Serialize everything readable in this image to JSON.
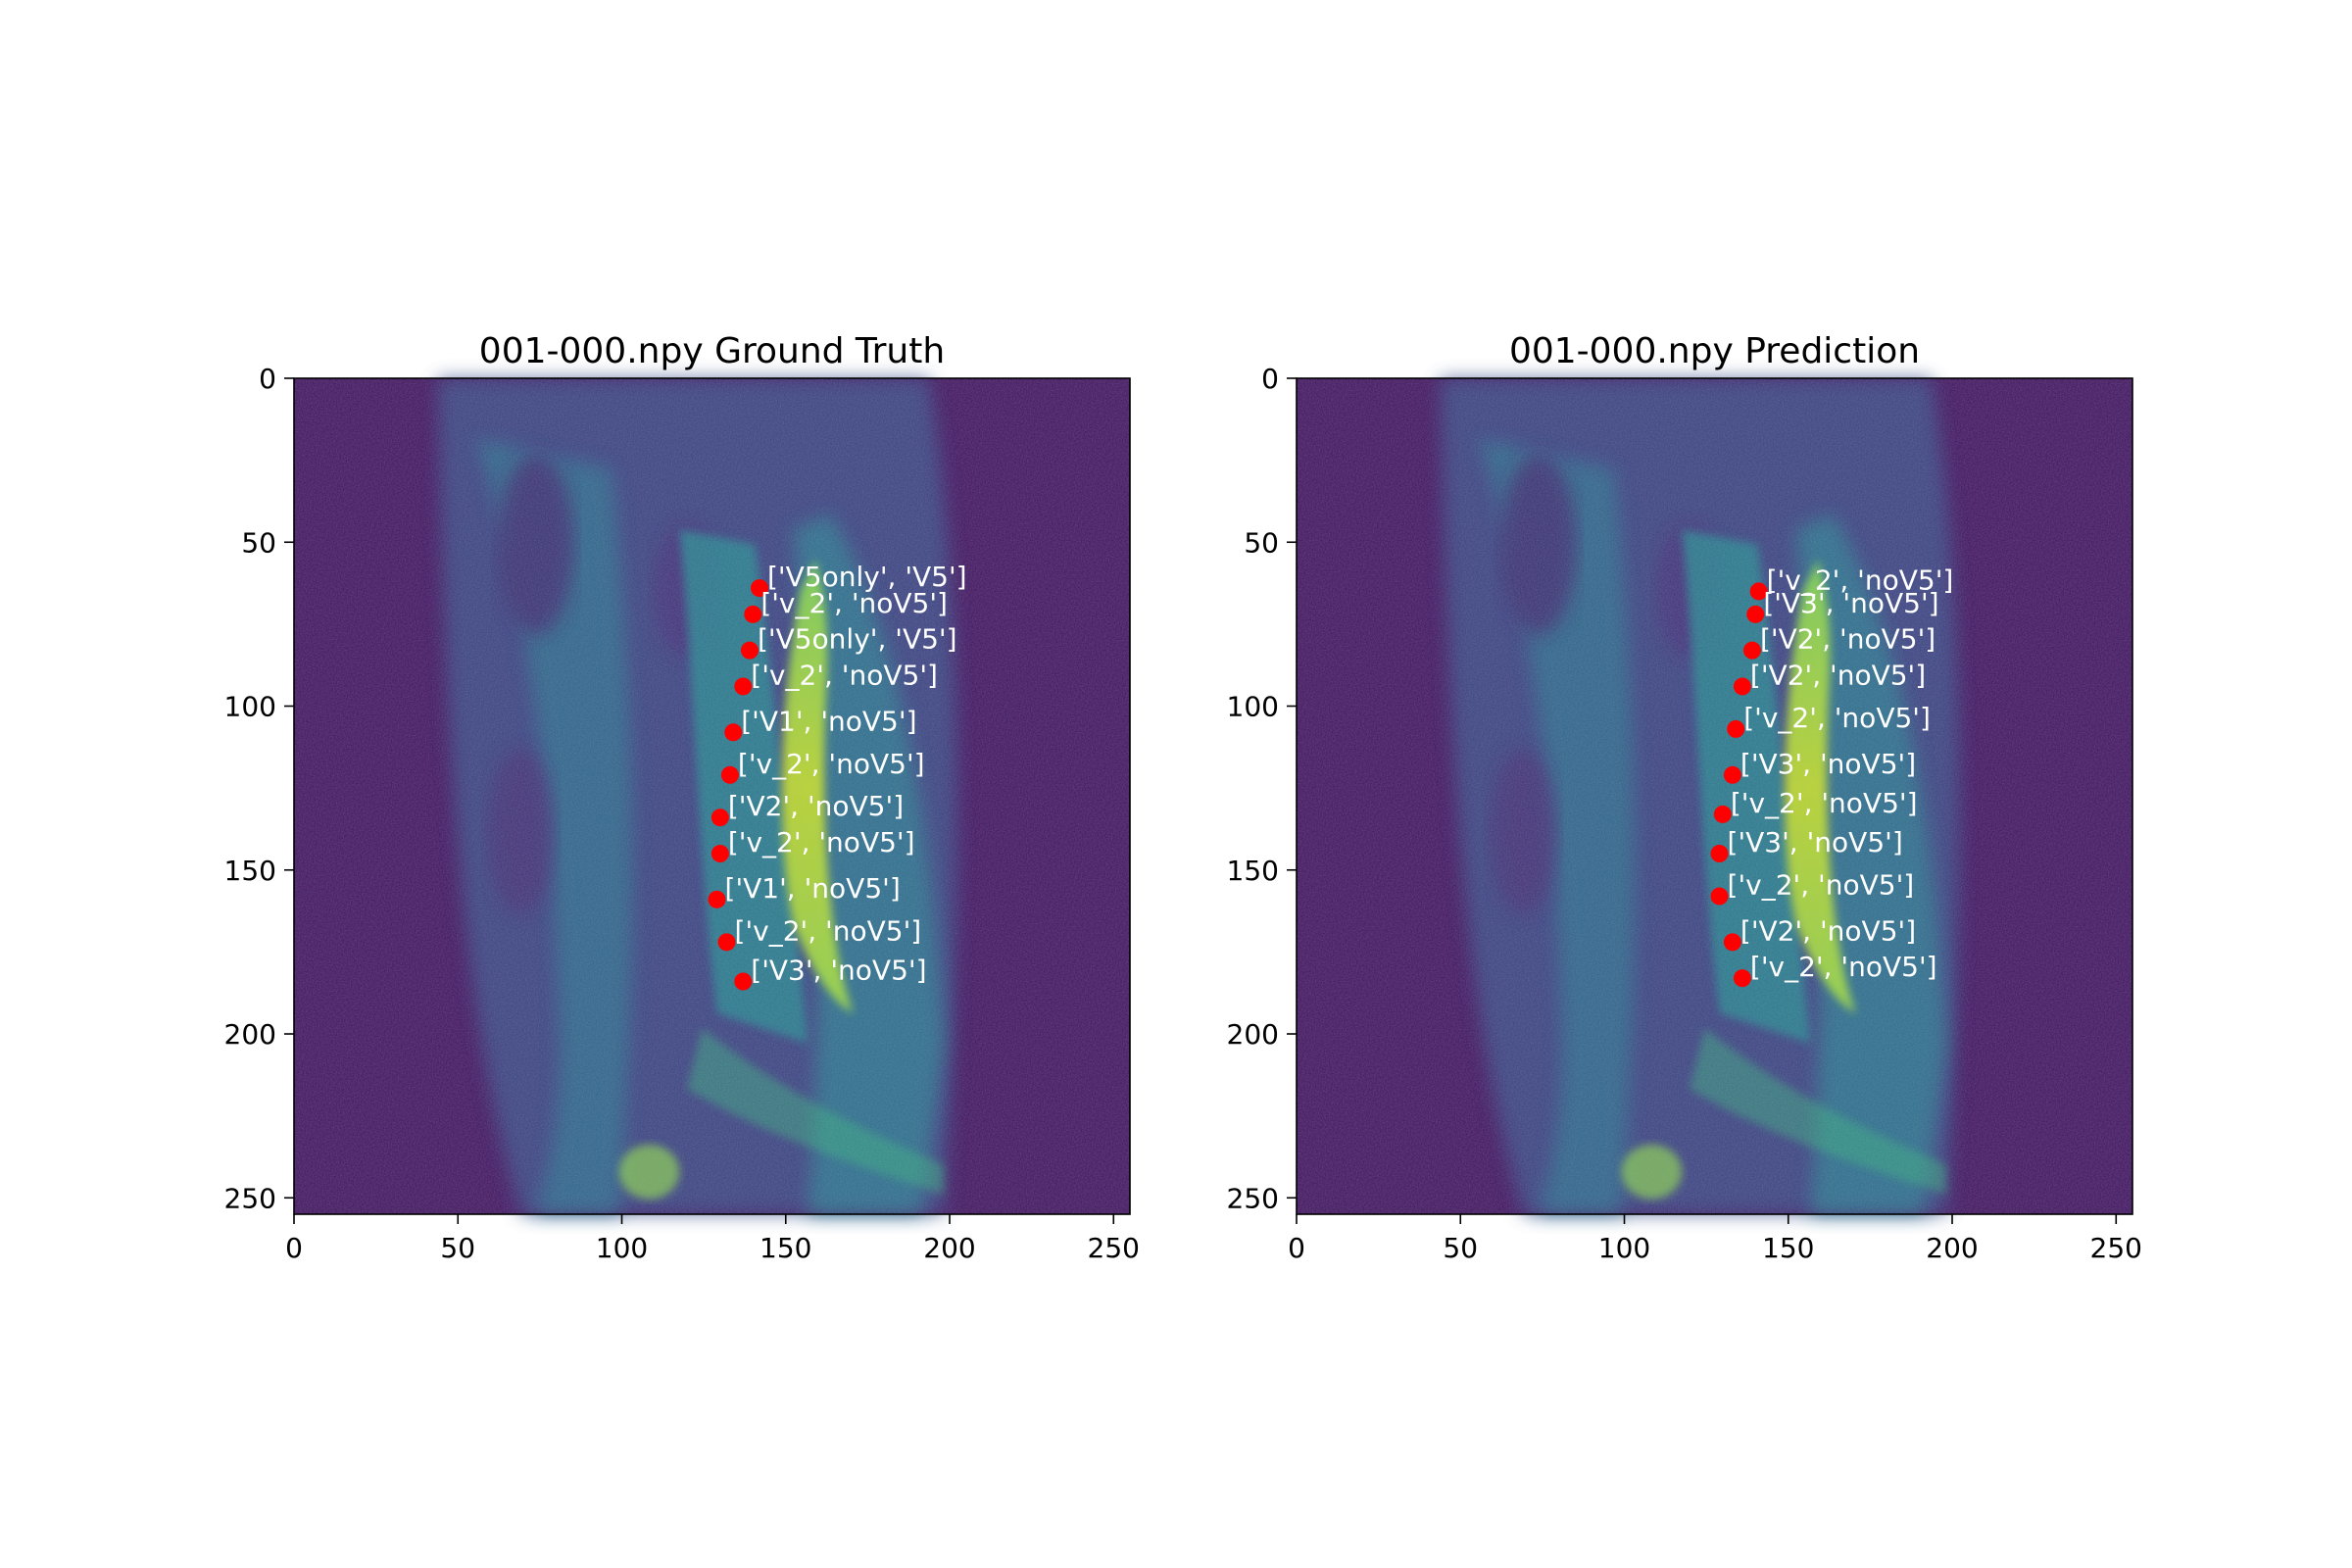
{
  "chart_data": [
    {
      "type": "scatter",
      "title": "001-000.npy Ground Truth",
      "xlabel": "",
      "ylabel": "",
      "xlim": [
        0,
        255
      ],
      "ylim": [
        255,
        0
      ],
      "xticks": [
        0,
        50,
        100,
        150,
        200,
        250
      ],
      "yticks": [
        0,
        50,
        100,
        150,
        200,
        250
      ],
      "grid": false,
      "background": "sagittal spine MRI slice (viridis colormap)",
      "marker_color": "#ff0000",
      "label_color": "#ffffff",
      "points": [
        {
          "x": 142,
          "y": 64,
          "label": "['V5only', 'V5']"
        },
        {
          "x": 140,
          "y": 72,
          "label": "['v_2', 'noV5']"
        },
        {
          "x": 139,
          "y": 83,
          "label": "['V5only', 'V5']"
        },
        {
          "x": 137,
          "y": 94,
          "label": "['v_2', 'noV5']"
        },
        {
          "x": 134,
          "y": 108,
          "label": "['V1', 'noV5']"
        },
        {
          "x": 133,
          "y": 121,
          "label": "['v_2', 'noV5']"
        },
        {
          "x": 130,
          "y": 134,
          "label": "['V2', 'noV5']"
        },
        {
          "x": 130,
          "y": 145,
          "label": "['v_2', 'noV5']"
        },
        {
          "x": 129,
          "y": 159,
          "label": "['V1', 'noV5']"
        },
        {
          "x": 132,
          "y": 172,
          "label": "['v_2', 'noV5']"
        },
        {
          "x": 137,
          "y": 184,
          "label": "['V3', 'noV5']"
        }
      ]
    },
    {
      "type": "scatter",
      "title": "001-000.npy Prediction",
      "xlabel": "",
      "ylabel": "",
      "xlim": [
        0,
        255
      ],
      "ylim": [
        255,
        0
      ],
      "xticks": [
        0,
        50,
        100,
        150,
        200,
        250
      ],
      "yticks": [
        0,
        50,
        100,
        150,
        200,
        250
      ],
      "grid": false,
      "background": "sagittal spine MRI slice (viridis colormap)",
      "marker_color": "#ff0000",
      "label_color": "#ffffff",
      "points": [
        {
          "x": 141,
          "y": 65,
          "label": "['v_2', 'noV5']"
        },
        {
          "x": 140,
          "y": 72,
          "label": "['V3', 'noV5']"
        },
        {
          "x": 139,
          "y": 83,
          "label": "['V2', 'noV5']"
        },
        {
          "x": 136,
          "y": 94,
          "label": "['V2', 'noV5']"
        },
        {
          "x": 134,
          "y": 107,
          "label": "['v_2', 'noV5']"
        },
        {
          "x": 133,
          "y": 121,
          "label": "['V3', 'noV5']"
        },
        {
          "x": 130,
          "y": 133,
          "label": "['v_2', 'noV5']"
        },
        {
          "x": 129,
          "y": 145,
          "label": "['V3', 'noV5']"
        },
        {
          "x": 129,
          "y": 158,
          "label": "['v_2', 'noV5']"
        },
        {
          "x": 133,
          "y": 172,
          "label": "['V2', 'noV5']"
        },
        {
          "x": 136,
          "y": 183,
          "label": "['v_2', 'noV5']"
        }
      ]
    }
  ]
}
